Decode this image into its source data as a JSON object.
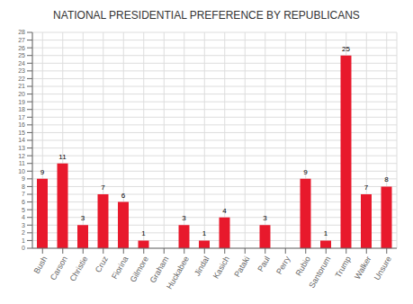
{
  "chart_data": {
    "type": "bar",
    "title": "NATIONAL PRESIDENTIAL PREFERENCE BY REPUBLICANS",
    "categories": [
      "Bush",
      "Carson",
      "Christie",
      "Cruz",
      "Fiorina",
      "Gilmore",
      "Graham",
      "Huckabee",
      "Jindal",
      "Kasich",
      "Pataki",
      "Paul",
      "Perry",
      "Rubio",
      "Santorum",
      "Trump",
      "Walker",
      "Unsure"
    ],
    "values": [
      9,
      11,
      3,
      7,
      6,
      1,
      0,
      3,
      1,
      4,
      0,
      3,
      0,
      9,
      1,
      25,
      7,
      8
    ],
    "color": "#e8192c",
    "ylim": [
      0,
      28
    ],
    "yticks": [
      0,
      1,
      2,
      3,
      4,
      5,
      6,
      7,
      8,
      9,
      10,
      11,
      12,
      13,
      14,
      15,
      16,
      17,
      18,
      19,
      20,
      21,
      22,
      23,
      24,
      25,
      26,
      27,
      28
    ],
    "grid": true,
    "data_labels": true
  }
}
